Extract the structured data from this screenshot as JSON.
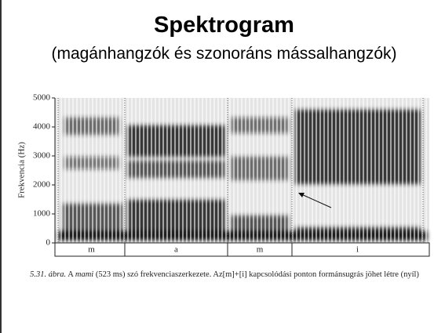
{
  "title": "Spektrogram",
  "subtitle": "(magánhangzók és szonoráns mássalhangzók)",
  "figure": {
    "y_label": "Frekvencia (Hz)",
    "yticks": [
      0,
      1000,
      2000,
      3000,
      4000,
      5000
    ],
    "segments": [
      "m",
      "a",
      "m",
      "i"
    ],
    "caption": {
      "label": "5.31. ábra.",
      "before": "A",
      "word": "mami",
      "after": "(523 ms) szó frekvenciaszerkezete. Az[m]+[i] kapcsolódási ponton formánsugrás jöhet létre (nyíl)"
    }
  }
}
